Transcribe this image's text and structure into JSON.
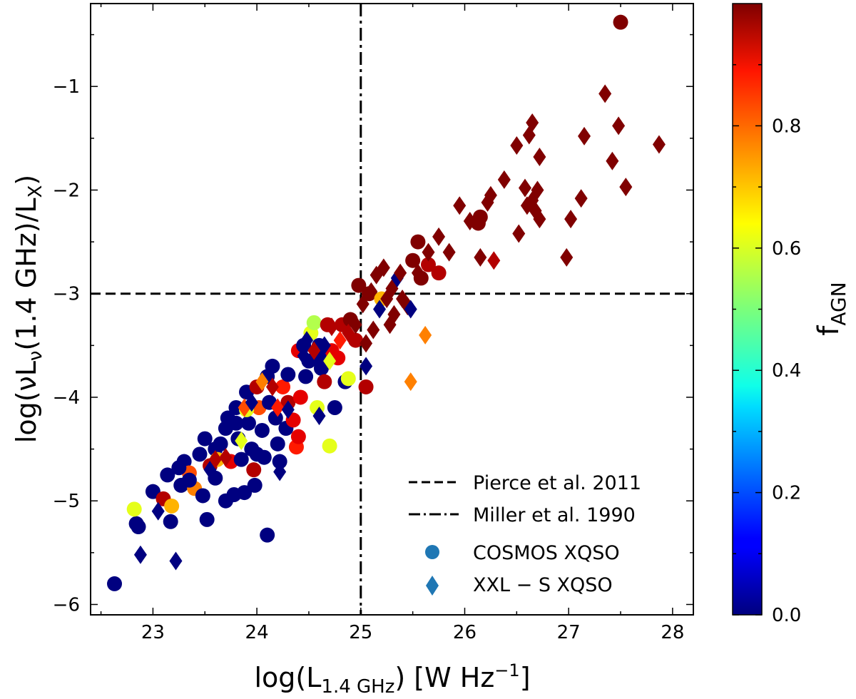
{
  "chart_data": {
    "type": "scatter",
    "xlabel": {
      "base": "log(L",
      "sub": "1.4 GHz",
      "post": ") [W Hz",
      "sup": "−1",
      "close": "]"
    },
    "ylabel": {
      "p1": "log(νL",
      "sub1": "ν",
      "p2": "(1.4 GHz)/L",
      "sub2": "X",
      "p3": ")"
    },
    "xlim": [
      22.4,
      28.2
    ],
    "ylim": [
      -6.1,
      -0.2
    ],
    "xticks": [
      {
        "value": 23,
        "label": "23"
      },
      {
        "value": 24,
        "label": "24"
      },
      {
        "value": 25,
        "label": "25"
      },
      {
        "value": 26,
        "label": "26"
      },
      {
        "value": 27,
        "label": "27"
      },
      {
        "value": 28,
        "label": "28"
      }
    ],
    "yticks": [
      {
        "value": -6,
        "label": "−6"
      },
      {
        "value": -5,
        "label": "−5"
      },
      {
        "value": -4,
        "label": "−4"
      },
      {
        "value": -3,
        "label": "−3"
      },
      {
        "value": -2,
        "label": "−2"
      },
      {
        "value": -1,
        "label": "−1"
      }
    ],
    "reference_lines": [
      {
        "name": "Pierce et al. 2011",
        "orientation": "horizontal",
        "value": -3,
        "style": "dashed"
      },
      {
        "name": "Miller et al. 1990",
        "orientation": "vertical",
        "value": 25,
        "style": "dashdot"
      }
    ],
    "legend": {
      "position": "lower-right",
      "entries": [
        {
          "label": "Pierce et al. 2011",
          "kind": "dashed"
        },
        {
          "label": "Miller et al. 1990",
          "kind": "dashdot"
        },
        {
          "label": "COSMOS XQSO",
          "kind": "circle"
        },
        {
          "label": "XXL − S XQSO",
          "kind": "diamond"
        }
      ]
    },
    "colorbar": {
      "label_base": "f",
      "label_sub": "AGN",
      "range": [
        0,
        1
      ],
      "ticks": [
        {
          "value": 0.0,
          "label": "0.0"
        },
        {
          "value": 0.2,
          "label": "0.2"
        },
        {
          "value": 0.4,
          "label": "0.4"
        },
        {
          "value": 0.6,
          "label": "0.6"
        },
        {
          "value": 0.8,
          "label": "0.8"
        }
      ],
      "colormap": "jet"
    },
    "series": [
      {
        "name": "COSMOS XQSO",
        "marker": "circle",
        "points": [
          [
            22.63,
            -5.8,
            0.0
          ],
          [
            22.84,
            -5.22,
            0.0
          ],
          [
            22.86,
            -5.25,
            0.0
          ],
          [
            22.82,
            -5.08,
            0.6
          ],
          [
            23.0,
            -4.91,
            0.0
          ],
          [
            23.1,
            -4.98,
            0.95
          ],
          [
            23.14,
            -4.75,
            0.0
          ],
          [
            23.18,
            -5.05,
            0.7
          ],
          [
            23.17,
            -5.2,
            0.0
          ],
          [
            23.27,
            -4.85,
            0.0
          ],
          [
            23.3,
            -4.62,
            0.0
          ],
          [
            23.35,
            -4.73,
            0.8
          ],
          [
            23.4,
            -4.88,
            0.75
          ],
          [
            23.45,
            -4.55,
            0.0
          ],
          [
            23.5,
            -4.4,
            0.0
          ],
          [
            23.52,
            -5.18,
            0.0
          ],
          [
            23.48,
            -4.95,
            0.0
          ],
          [
            23.55,
            -4.66,
            0.95
          ],
          [
            23.6,
            -4.5,
            0.0
          ],
          [
            23.62,
            -4.6,
            0.7
          ],
          [
            23.65,
            -4.45,
            0.0
          ],
          [
            23.7,
            -4.3,
            0.0
          ],
          [
            23.72,
            -4.2,
            0.0
          ],
          [
            23.75,
            -4.62,
            0.9
          ],
          [
            23.78,
            -4.94,
            0.0
          ],
          [
            23.8,
            -4.1,
            0.0
          ],
          [
            23.82,
            -4.4,
            0.0
          ],
          [
            23.85,
            -4.6,
            0.0
          ],
          [
            23.88,
            -4.92,
            0.0
          ],
          [
            23.9,
            -3.95,
            0.0
          ],
          [
            23.92,
            -4.25,
            0.0
          ],
          [
            23.95,
            -4.5,
            0.0
          ],
          [
            23.97,
            -4.7,
            0.95
          ],
          [
            23.98,
            -4.85,
            0.0
          ],
          [
            24.0,
            -3.9,
            0.95
          ],
          [
            24.02,
            -4.1,
            0.8
          ],
          [
            24.05,
            -4.32,
            0.0
          ],
          [
            24.07,
            -4.58,
            0.0
          ],
          [
            24.1,
            -3.8,
            0.0
          ],
          [
            24.12,
            -4.05,
            0.0
          ],
          [
            24.15,
            -3.7,
            0.0
          ],
          [
            24.18,
            -4.2,
            0.0
          ],
          [
            24.2,
            -4.45,
            0.0
          ],
          [
            24.22,
            -4.62,
            0.0
          ],
          [
            24.25,
            -3.9,
            0.85
          ],
          [
            24.28,
            -4.3,
            0.0
          ],
          [
            24.3,
            -4.05,
            0.95
          ],
          [
            24.35,
            -4.22,
            0.9
          ],
          [
            24.38,
            -4.48,
            0.85
          ],
          [
            24.4,
            -3.55,
            0.9
          ],
          [
            24.42,
            -4.0,
            0.9
          ],
          [
            24.45,
            -3.5,
            0.0
          ],
          [
            24.47,
            -3.8,
            0.0
          ],
          [
            24.5,
            -3.65,
            0.0
          ],
          [
            24.52,
            -3.38,
            0.6
          ],
          [
            24.55,
            -3.28,
            0.55
          ],
          [
            24.58,
            -4.1,
            0.6
          ],
          [
            24.6,
            -3.5,
            0.0
          ],
          [
            24.62,
            -3.72,
            0.0
          ],
          [
            24.65,
            -3.85,
            0.95
          ],
          [
            24.68,
            -3.3,
            0.95
          ],
          [
            24.7,
            -4.47,
            0.6
          ],
          [
            24.72,
            -3.55,
            0.9
          ],
          [
            24.75,
            -4.1,
            0.0
          ],
          [
            24.78,
            -3.62,
            0.9
          ],
          [
            24.82,
            -3.3,
            0.95
          ],
          [
            24.85,
            -3.85,
            0.0
          ],
          [
            24.88,
            -3.82,
            0.6
          ],
          [
            24.9,
            -3.25,
            1.0
          ],
          [
            24.95,
            -3.45,
            0.95
          ],
          [
            24.98,
            -2.92,
            1.0
          ],
          [
            25.05,
            -3.9,
            0.95
          ],
          [
            25.08,
            -3.0,
            1.0
          ],
          [
            24.1,
            -5.33,
            0.0
          ],
          [
            23.7,
            -5.0,
            0.0
          ],
          [
            23.35,
            -4.8,
            0.0
          ],
          [
            24.4,
            -4.38,
            0.9
          ],
          [
            23.9,
            -4.12,
            0.6
          ],
          [
            25.2,
            -3.05,
            0.7
          ],
          [
            25.55,
            -2.5,
            1.0
          ],
          [
            25.5,
            -2.68,
            1.0
          ],
          [
            25.58,
            -2.85,
            1.0
          ],
          [
            25.65,
            -2.72,
            0.95
          ],
          [
            25.75,
            -2.8,
            0.95
          ],
          [
            26.15,
            -2.26,
            1.0
          ],
          [
            26.13,
            -2.32,
            1.0
          ],
          [
            27.5,
            -0.38,
            1.0
          ],
          [
            23.25,
            -4.68,
            0.0
          ],
          [
            23.6,
            -4.78,
            0.0
          ],
          [
            24.0,
            -4.55,
            0.0
          ],
          [
            23.8,
            -4.25,
            0.0
          ],
          [
            24.6,
            -3.62,
            0.0
          ],
          [
            24.3,
            -3.78,
            0.0
          ]
        ]
      },
      {
        "name": "XXL − S XQSO",
        "marker": "diamond",
        "points": [
          [
            22.88,
            -5.52,
            0.0
          ],
          [
            23.22,
            -5.58,
            0.0
          ],
          [
            23.05,
            -5.1,
            0.0
          ],
          [
            23.55,
            -4.7,
            0.0
          ],
          [
            23.7,
            -4.58,
            0.95
          ],
          [
            23.85,
            -4.42,
            0.6
          ],
          [
            23.88,
            -4.1,
            0.8
          ],
          [
            23.95,
            -4.05,
            0.0
          ],
          [
            24.05,
            -3.85,
            0.75
          ],
          [
            24.15,
            -3.9,
            0.95
          ],
          [
            24.2,
            -4.1,
            0.85
          ],
          [
            24.22,
            -4.72,
            0.0
          ],
          [
            24.3,
            -4.12,
            0.0
          ],
          [
            24.45,
            -3.6,
            0.0
          ],
          [
            24.55,
            -3.55,
            0.95
          ],
          [
            24.6,
            -4.18,
            0.0
          ],
          [
            24.65,
            -3.5,
            0.0
          ],
          [
            24.7,
            -3.65,
            0.6
          ],
          [
            24.72,
            -3.32,
            0.95
          ],
          [
            24.8,
            -3.45,
            0.85
          ],
          [
            24.88,
            -3.38,
            0.95
          ],
          [
            24.95,
            -3.3,
            1.0
          ],
          [
            25.02,
            -3.1,
            1.0
          ],
          [
            25.05,
            -3.48,
            1.0
          ],
          [
            25.05,
            -3.7,
            0.0
          ],
          [
            25.1,
            -2.98,
            1.0
          ],
          [
            25.15,
            -2.82,
            1.0
          ],
          [
            25.18,
            -3.15,
            0.0
          ],
          [
            25.22,
            -2.75,
            1.0
          ],
          [
            25.25,
            -3.05,
            1.0
          ],
          [
            25.28,
            -3.3,
            1.0
          ],
          [
            25.3,
            -2.95,
            1.0
          ],
          [
            25.32,
            -3.2,
            1.0
          ],
          [
            25.35,
            -2.85,
            0.0
          ],
          [
            25.38,
            -2.8,
            1.0
          ],
          [
            25.4,
            -3.05,
            1.0
          ],
          [
            25.45,
            -3.12,
            1.0
          ],
          [
            25.48,
            -3.85,
            0.75
          ],
          [
            25.48,
            -3.15,
            0.0
          ],
          [
            25.55,
            -2.8,
            1.0
          ],
          [
            25.62,
            -3.4,
            0.75
          ],
          [
            25.65,
            -2.6,
            1.0
          ],
          [
            25.75,
            -2.45,
            1.0
          ],
          [
            25.85,
            -2.6,
            1.0
          ],
          [
            25.95,
            -2.15,
            1.0
          ],
          [
            26.05,
            -2.3,
            1.0
          ],
          [
            26.15,
            -2.65,
            1.0
          ],
          [
            26.22,
            -2.12,
            1.0
          ],
          [
            26.25,
            -2.05,
            1.0
          ],
          [
            26.28,
            -2.68,
            0.95
          ],
          [
            26.38,
            -1.9,
            1.0
          ],
          [
            26.5,
            -1.57,
            1.0
          ],
          [
            26.52,
            -2.42,
            1.0
          ],
          [
            26.58,
            -1.98,
            1.0
          ],
          [
            26.6,
            -2.15,
            1.0
          ],
          [
            26.62,
            -1.47,
            1.0
          ],
          [
            26.65,
            -1.35,
            1.0
          ],
          [
            26.65,
            -2.1,
            1.0
          ],
          [
            26.68,
            -2.2,
            1.0
          ],
          [
            26.7,
            -2.0,
            1.0
          ],
          [
            26.72,
            -1.68,
            1.0
          ],
          [
            26.72,
            -2.28,
            1.0
          ],
          [
            26.98,
            -2.65,
            1.0
          ],
          [
            27.02,
            -2.28,
            1.0
          ],
          [
            27.12,
            -2.08,
            1.0
          ],
          [
            27.15,
            -1.48,
            1.0
          ],
          [
            27.35,
            -1.07,
            1.0
          ],
          [
            27.42,
            -1.72,
            1.0
          ],
          [
            27.48,
            -1.38,
            1.0
          ],
          [
            27.55,
            -1.97,
            1.0
          ],
          [
            27.87,
            -1.56,
            1.0
          ],
          [
            25.12,
            -3.35,
            1.0
          ],
          [
            23.6,
            -4.6,
            0.95
          ],
          [
            24.48,
            -3.45,
            0.0
          ]
        ]
      }
    ]
  }
}
